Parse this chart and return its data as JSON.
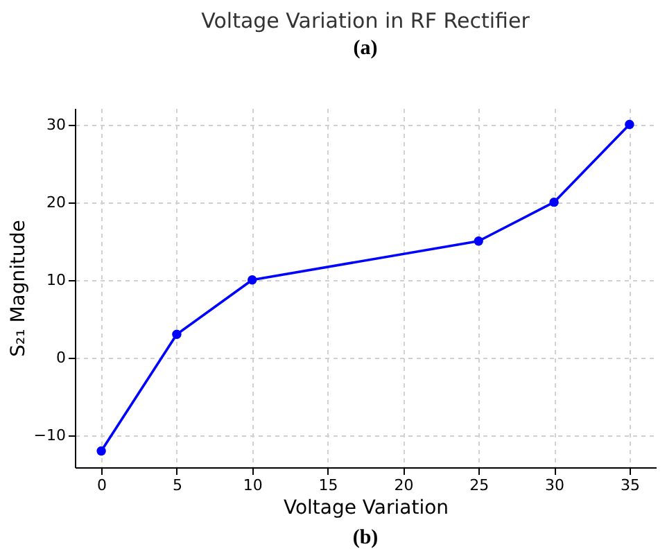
{
  "chart_data": {
    "type": "line",
    "title": "Voltage Variation in RF Rectifier",
    "xlabel": "Voltage Variation",
    "ylabel": "S₂₁ Magnitude",
    "annotations": [
      "(a)",
      "(b)"
    ],
    "x": [
      0,
      5,
      10,
      25,
      30,
      35
    ],
    "series": [
      {
        "color": "#0000ff",
        "values": [
          -12,
          3,
          10,
          15,
          20,
          30
        ]
      }
    ],
    "xlim": [
      -1.75,
      36.75
    ],
    "ylim": [
      -14.1,
      32.1
    ],
    "xticks": [
      0,
      5,
      10,
      15,
      20,
      25,
      30,
      35
    ],
    "yticks": [
      -10,
      0,
      10,
      20,
      30
    ],
    "grid": true,
    "marker": "circle",
    "line_style": "solid"
  }
}
